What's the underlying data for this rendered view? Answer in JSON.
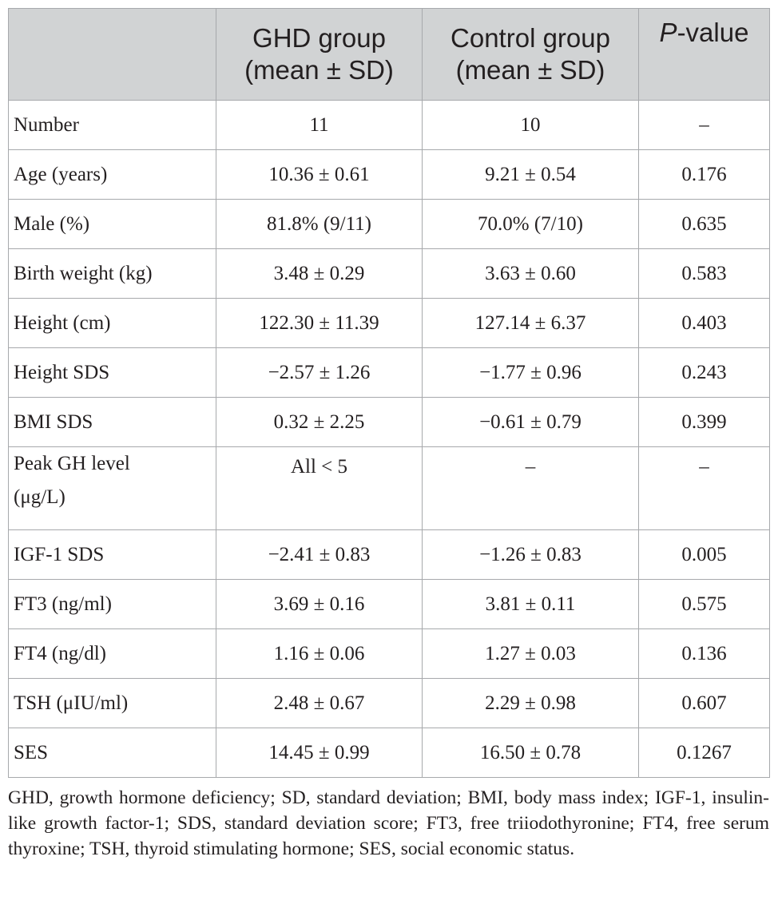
{
  "table": {
    "headers": [
      {
        "line1": "",
        "line2": ""
      },
      {
        "line1": "GHD group",
        "line2": "(mean ± SD)"
      },
      {
        "line1": "Control group",
        "line2": "(mean ± SD)"
      },
      {
        "italic": "P",
        "rest": "-value"
      }
    ],
    "rows": [
      {
        "label": "Number",
        "ghd": "11",
        "control": "10",
        "p": "–"
      },
      {
        "label": "Age (years)",
        "ghd": "10.36 ± 0.61",
        "control": "9.21 ± 0.54",
        "p": "0.176"
      },
      {
        "label": "Male (%)",
        "ghd": "81.8% (9/11)",
        "control": "70.0% (7/10)",
        "p": "0.635"
      },
      {
        "label": "Birth weight (kg)",
        "ghd": "3.48 ± 0.29",
        "control": "3.63 ± 0.60",
        "p": "0.583"
      },
      {
        "label": "Height (cm)",
        "ghd": "122.30 ± 11.39",
        "control": "127.14 ± 6.37",
        "p": "0.403"
      },
      {
        "label": "Height SDS",
        "ghd": "−2.57 ± 1.26",
        "control": "−1.77 ± 0.96",
        "p": "0.243"
      },
      {
        "label": "BMI SDS",
        "ghd": "0.32 ± 2.25",
        "control": "−0.61 ± 0.79",
        "p": "0.399"
      },
      {
        "label_line1": "Peak GH level",
        "label_line2": "(μg/L)",
        "ghd": "All < 5",
        "control": "–",
        "p": "–"
      },
      {
        "label": "IGF-1 SDS",
        "ghd": "−2.41 ± 0.83",
        "control": "−1.26 ± 0.83",
        "p": "0.005"
      },
      {
        "label": "FT3 (ng/ml)",
        "ghd": "3.69 ± 0.16",
        "control": "3.81 ± 0.11",
        "p": "0.575"
      },
      {
        "label": "FT4 (ng/dl)",
        "ghd": "1.16 ± 0.06",
        "control": "1.27 ± 0.03",
        "p": "0.136"
      },
      {
        "label": "TSH (μIU/ml)",
        "ghd": "2.48 ± 0.67",
        "control": "2.29 ± 0.98",
        "p": "0.607"
      },
      {
        "label": "SES",
        "ghd": "14.45 ± 0.99",
        "control": "16.50 ± 0.78",
        "p": "0.1267"
      }
    ]
  },
  "footnote": "GHD, growth hormone deficiency; SD, standard deviation; BMI, body mass index; IGF-1, insulin-like growth factor-1; SDS, standard deviation score; FT3, free triiodothyronine; FT4, free serum thyroxine; TSH, thyroid stimulating hormone; SES, social economic status."
}
